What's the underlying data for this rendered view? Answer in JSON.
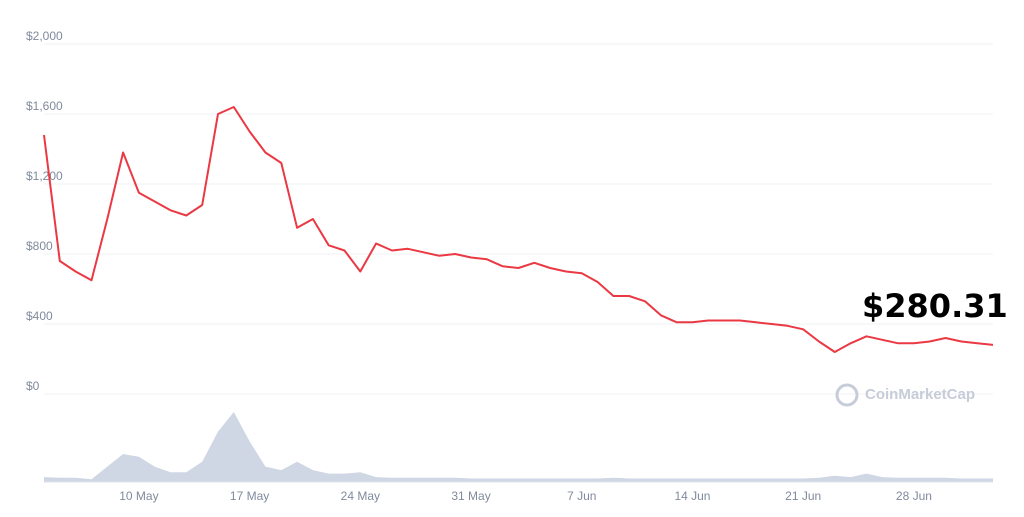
{
  "chart_data": {
    "type": "line",
    "categories": [
      null,
      null,
      null,
      null,
      null,
      null,
      "10 May",
      null,
      null,
      null,
      null,
      null,
      null,
      "17 May",
      null,
      null,
      null,
      null,
      null,
      null,
      "24 May",
      null,
      null,
      null,
      null,
      null,
      null,
      "31 May",
      null,
      null,
      null,
      null,
      null,
      null,
      "7 Jun",
      null,
      null,
      null,
      null,
      null,
      null,
      "14 Jun",
      null,
      null,
      null,
      null,
      null,
      null,
      "21 Jun",
      null,
      null,
      null,
      null,
      null,
      null,
      "28 Jun",
      null,
      null,
      null,
      null,
      null
    ],
    "series": [
      {
        "color": "#ea3943",
        "values": [
          1480,
          760,
          700,
          650,
          1000,
          1380,
          1150,
          1100,
          1050,
          1020,
          1080,
          1600,
          1640,
          1500,
          1380,
          1320,
          950,
          1000,
          850,
          820,
          700,
          860,
          820,
          830,
          810,
          790,
          800,
          780,
          770,
          730,
          720,
          750,
          720,
          700,
          690,
          640,
          560,
          560,
          530,
          450,
          410,
          410,
          420,
          420,
          420,
          410,
          400,
          390,
          370,
          300,
          240,
          290,
          330,
          310,
          290,
          290,
          300,
          320,
          300,
          290,
          280.31
        ]
      }
    ],
    "volume": {
      "color": "#cfd6e4",
      "ylim": [
        0,
        100
      ],
      "values": [
        7,
        6,
        6,
        4,
        22,
        40,
        36,
        22,
        14,
        14,
        29,
        72,
        100,
        58,
        22,
        17,
        29,
        17,
        12,
        12,
        14,
        7,
        6,
        6,
        6,
        6,
        6,
        5,
        5,
        5,
        5,
        5,
        5,
        5,
        5,
        5,
        6,
        5,
        5,
        5,
        5,
        5,
        5,
        5,
        5,
        5,
        5,
        5,
        5,
        6,
        9,
        7,
        12,
        7,
        6,
        6,
        6,
        6,
        5,
        5,
        5
      ]
    },
    "ylim": [
      0,
      2000
    ],
    "yticks": [
      {
        "value": 0,
        "label": "$0"
      },
      {
        "value": 400,
        "label": "$400"
      },
      {
        "value": 800,
        "label": "$800"
      },
      {
        "value": 1200,
        "label": "$1,200"
      },
      {
        "value": 1600,
        "label": "$1,600"
      },
      {
        "value": 2000,
        "label": "$2,000"
      }
    ],
    "grid": true,
    "price_label": "$280.31",
    "watermark": "CoinMarketCap"
  }
}
